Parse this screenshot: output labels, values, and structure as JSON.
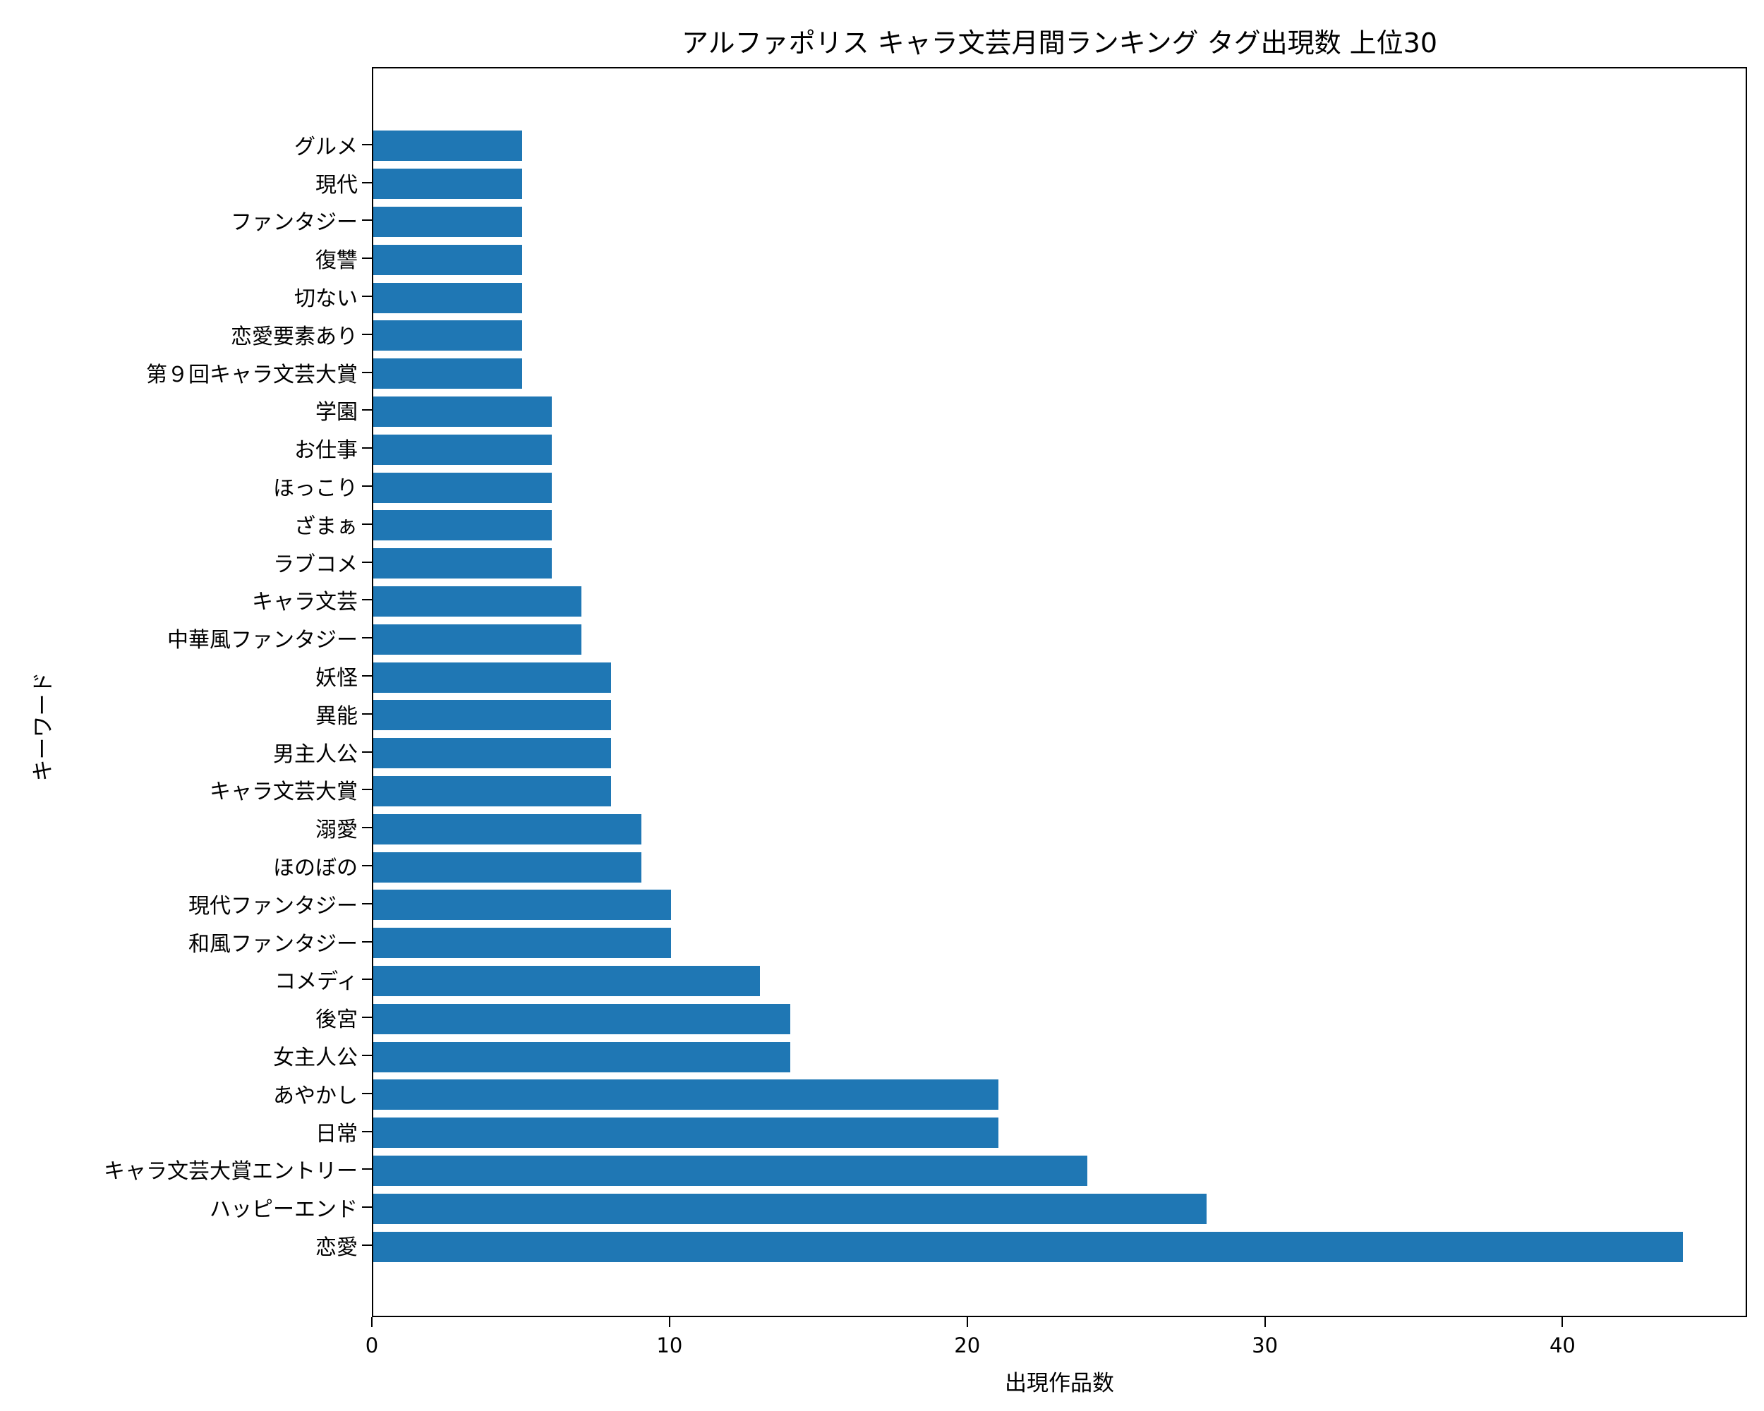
{
  "chart_data": {
    "type": "bar",
    "orientation": "horizontal",
    "title": "アルファポリス キャラ文芸月間ランキング タグ出現数 上位30",
    "xlabel": "出現作品数",
    "ylabel": "キーワード",
    "xlim": [
      0,
      46.2
    ],
    "xticks": [
      0,
      10,
      20,
      30,
      40
    ],
    "grid": false,
    "legend": null,
    "bar_color": "#1f77b4",
    "categories": [
      "恋愛",
      "ハッピーエンド",
      "キャラ文芸大賞エントリー",
      "日常",
      "あやかし",
      "女主人公",
      "後宮",
      "コメディ",
      "和風ファンタジー",
      "現代ファンタジー",
      "ほのぼの",
      "溺愛",
      "キャラ文芸大賞",
      "男主人公",
      "異能",
      "妖怪",
      "中華風ファンタジー",
      "キャラ文芸",
      "ラブコメ",
      "ざまぁ",
      "ほっこり",
      "お仕事",
      "学園",
      "第９回キャラ文芸大賞",
      "恋愛要素あり",
      "切ない",
      "復讐",
      "ファンタジー",
      "現代",
      "グルメ"
    ],
    "values": [
      44,
      28,
      24,
      21,
      21,
      14,
      14,
      13,
      10,
      10,
      9,
      9,
      8,
      8,
      8,
      8,
      7,
      7,
      6,
      6,
      6,
      6,
      6,
      5,
      5,
      5,
      5,
      5,
      5,
      5
    ]
  }
}
